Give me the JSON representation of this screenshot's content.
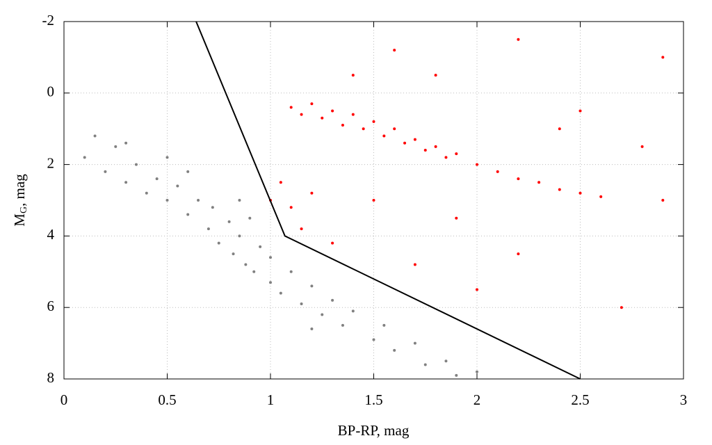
{
  "chart_data": {
    "type": "scatter",
    "xlabel": "BP-RP, mag",
    "ylabel": [
      "M",
      "G",
      ", mag"
    ],
    "xlim": [
      0,
      3
    ],
    "xticks": [
      0,
      0.5,
      1,
      1.5,
      2,
      2.5,
      3
    ],
    "ylim": [
      8,
      -2
    ],
    "yticks": [
      -2,
      0,
      2,
      4,
      6,
      8
    ],
    "grid": true,
    "series": [
      {
        "color": "#808080",
        "x": [
          0.1,
          0.15,
          0.2,
          0.25,
          0.3,
          0.35,
          0.4,
          0.45,
          0.5,
          0.55,
          0.6,
          0.65,
          0.7,
          0.72,
          0.75,
          0.8,
          0.82,
          0.85,
          0.88,
          0.9,
          0.92,
          0.95,
          1.0,
          1.0,
          1.05,
          1.1,
          1.15,
          1.2,
          1.25,
          1.3,
          1.35,
          1.4,
          1.5,
          1.55,
          1.6,
          1.7,
          1.75,
          1.85,
          1.9,
          2.0,
          0.3,
          0.6,
          0.85,
          1.2,
          0.5
        ],
        "values": [
          1.8,
          1.2,
          2.2,
          1.5,
          2.5,
          2.0,
          2.8,
          2.4,
          3.0,
          2.6,
          3.4,
          3.0,
          3.8,
          3.2,
          4.2,
          3.6,
          4.5,
          4.0,
          4.8,
          3.5,
          5.0,
          4.3,
          5.3,
          4.6,
          5.6,
          5.0,
          5.9,
          5.4,
          6.2,
          5.8,
          6.5,
          6.1,
          6.9,
          6.5,
          7.2,
          7.0,
          7.6,
          7.5,
          7.9,
          7.8,
          1.4,
          2.2,
          3.0,
          6.6,
          1.8
        ]
      },
      {
        "color": "#ff0000",
        "x": [
          1.1,
          1.15,
          1.2,
          1.25,
          1.3,
          1.35,
          1.4,
          1.45,
          1.5,
          1.55,
          1.6,
          1.65,
          1.7,
          1.75,
          1.8,
          1.85,
          1.9,
          2.0,
          2.1,
          2.2,
          2.3,
          2.4,
          2.5,
          2.6,
          1.05,
          1.1,
          1.15,
          1.2,
          1.0,
          1.3,
          1.6,
          1.8,
          2.2,
          2.5,
          2.8,
          2.9,
          2.2,
          2.0,
          1.7,
          2.7,
          1.5,
          1.9,
          2.4,
          1.4,
          2.9
        ],
        "values": [
          0.4,
          0.6,
          0.3,
          0.7,
          0.5,
          0.9,
          0.6,
          1.0,
          0.8,
          1.2,
          1.0,
          1.4,
          1.3,
          1.6,
          1.5,
          1.8,
          1.7,
          2.0,
          2.2,
          2.4,
          2.5,
          2.7,
          2.8,
          2.9,
          2.5,
          3.2,
          3.8,
          2.8,
          3.0,
          4.2,
          -1.2,
          -0.5,
          -1.5,
          0.5,
          1.5,
          3.0,
          4.5,
          5.5,
          4.8,
          6.0,
          3.0,
          3.5,
          1.0,
          -0.5,
          -1.0
        ]
      }
    ],
    "boundary": {
      "color": "#000000",
      "x": [
        0.64,
        1.07,
        2.5
      ],
      "values": [
        -2,
        4,
        8
      ]
    }
  }
}
